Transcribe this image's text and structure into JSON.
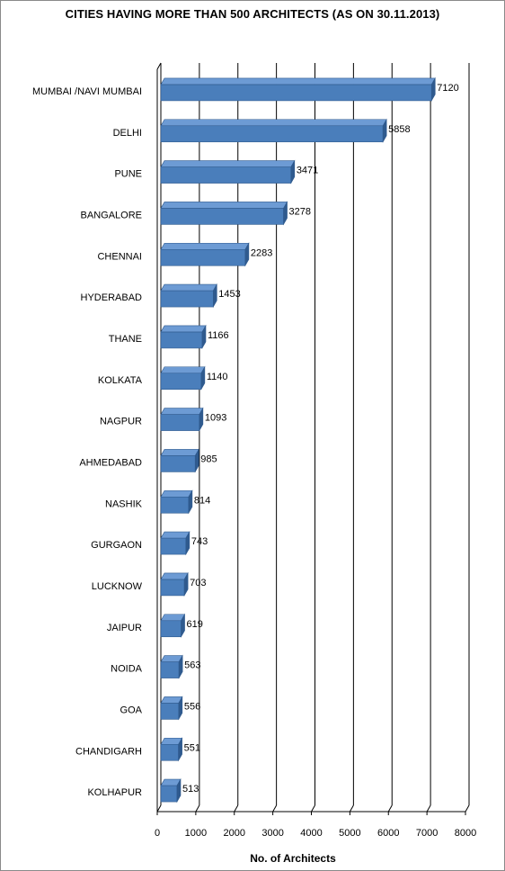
{
  "chart_data": {
    "type": "bar",
    "orientation": "horizontal",
    "title": "CITIES HAVING MORE THAN 500 ARCHITECTS (AS ON 30.11.2013)",
    "xlabel": "No. of Architects",
    "ylabel": "",
    "xlim": [
      0,
      8000
    ],
    "xticks": [
      "0",
      "1000",
      "2000",
      "3000",
      "4000",
      "5000",
      "6000",
      "7000",
      "8000"
    ],
    "gridlines": true,
    "categories": [
      "MUMBAI /NAVI MUMBAI",
      "DELHI",
      "PUNE",
      "BANGALORE",
      "CHENNAI",
      "HYDERABAD",
      "THANE",
      "KOLKATA",
      "NAGPUR",
      "AHMEDABAD",
      "NASHIK",
      "GURGAON",
      "LUCKNOW",
      "JAIPUR",
      "NOIDA",
      "GOA",
      "CHANDIGARH",
      "KOLHAPUR"
    ],
    "values": [
      7120,
      5858,
      3471,
      3278,
      2283,
      1453,
      1166,
      1140,
      1093,
      985,
      814,
      743,
      703,
      619,
      563,
      556,
      551,
      513
    ],
    "data_labels": [
      "7120",
      "5858",
      "3471",
      "3278",
      "2283",
      "1453",
      "1166",
      "1140",
      "1093",
      "985",
      "814",
      "743",
      "703",
      "619",
      "563",
      "556",
      "551",
      "513"
    ],
    "bar_color": "#4a7ebb",
    "bar_top_color": "#6d9bd4",
    "bar_side_color": "#2f5a8e"
  }
}
